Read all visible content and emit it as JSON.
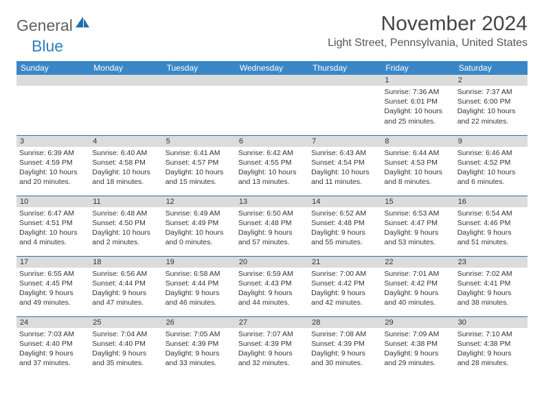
{
  "logo": {
    "text1": "General",
    "text2": "Blue",
    "icon_color": "#1f6fb0"
  },
  "title": "November 2024",
  "location": "Light Street, Pennsylvania, United States",
  "colors": {
    "header_bg": "#3a87c8",
    "header_text": "#ffffff",
    "daynum_bg": "#dcdcdc",
    "border": "#3a6a9a",
    "title_color": "#444444",
    "location_color": "#555555",
    "logo_gray": "#5f5f5f",
    "logo_blue": "#2f7ebf"
  },
  "daysOfWeek": [
    "Sunday",
    "Monday",
    "Tuesday",
    "Wednesday",
    "Thursday",
    "Friday",
    "Saturday"
  ],
  "weeks": [
    [
      {
        "n": "",
        "sr": "",
        "ss": "",
        "dl": ""
      },
      {
        "n": "",
        "sr": "",
        "ss": "",
        "dl": ""
      },
      {
        "n": "",
        "sr": "",
        "ss": "",
        "dl": ""
      },
      {
        "n": "",
        "sr": "",
        "ss": "",
        "dl": ""
      },
      {
        "n": "",
        "sr": "",
        "ss": "",
        "dl": ""
      },
      {
        "n": "1",
        "sr": "Sunrise: 7:36 AM",
        "ss": "Sunset: 6:01 PM",
        "dl": "Daylight: 10 hours and 25 minutes."
      },
      {
        "n": "2",
        "sr": "Sunrise: 7:37 AM",
        "ss": "Sunset: 6:00 PM",
        "dl": "Daylight: 10 hours and 22 minutes."
      }
    ],
    [
      {
        "n": "3",
        "sr": "Sunrise: 6:39 AM",
        "ss": "Sunset: 4:59 PM",
        "dl": "Daylight: 10 hours and 20 minutes."
      },
      {
        "n": "4",
        "sr": "Sunrise: 6:40 AM",
        "ss": "Sunset: 4:58 PM",
        "dl": "Daylight: 10 hours and 18 minutes."
      },
      {
        "n": "5",
        "sr": "Sunrise: 6:41 AM",
        "ss": "Sunset: 4:57 PM",
        "dl": "Daylight: 10 hours and 15 minutes."
      },
      {
        "n": "6",
        "sr": "Sunrise: 6:42 AM",
        "ss": "Sunset: 4:55 PM",
        "dl": "Daylight: 10 hours and 13 minutes."
      },
      {
        "n": "7",
        "sr": "Sunrise: 6:43 AM",
        "ss": "Sunset: 4:54 PM",
        "dl": "Daylight: 10 hours and 11 minutes."
      },
      {
        "n": "8",
        "sr": "Sunrise: 6:44 AM",
        "ss": "Sunset: 4:53 PM",
        "dl": "Daylight: 10 hours and 8 minutes."
      },
      {
        "n": "9",
        "sr": "Sunrise: 6:46 AM",
        "ss": "Sunset: 4:52 PM",
        "dl": "Daylight: 10 hours and 6 minutes."
      }
    ],
    [
      {
        "n": "10",
        "sr": "Sunrise: 6:47 AM",
        "ss": "Sunset: 4:51 PM",
        "dl": "Daylight: 10 hours and 4 minutes."
      },
      {
        "n": "11",
        "sr": "Sunrise: 6:48 AM",
        "ss": "Sunset: 4:50 PM",
        "dl": "Daylight: 10 hours and 2 minutes."
      },
      {
        "n": "12",
        "sr": "Sunrise: 6:49 AM",
        "ss": "Sunset: 4:49 PM",
        "dl": "Daylight: 10 hours and 0 minutes."
      },
      {
        "n": "13",
        "sr": "Sunrise: 6:50 AM",
        "ss": "Sunset: 4:48 PM",
        "dl": "Daylight: 9 hours and 57 minutes."
      },
      {
        "n": "14",
        "sr": "Sunrise: 6:52 AM",
        "ss": "Sunset: 4:48 PM",
        "dl": "Daylight: 9 hours and 55 minutes."
      },
      {
        "n": "15",
        "sr": "Sunrise: 6:53 AM",
        "ss": "Sunset: 4:47 PM",
        "dl": "Daylight: 9 hours and 53 minutes."
      },
      {
        "n": "16",
        "sr": "Sunrise: 6:54 AM",
        "ss": "Sunset: 4:46 PM",
        "dl": "Daylight: 9 hours and 51 minutes."
      }
    ],
    [
      {
        "n": "17",
        "sr": "Sunrise: 6:55 AM",
        "ss": "Sunset: 4:45 PM",
        "dl": "Daylight: 9 hours and 49 minutes."
      },
      {
        "n": "18",
        "sr": "Sunrise: 6:56 AM",
        "ss": "Sunset: 4:44 PM",
        "dl": "Daylight: 9 hours and 47 minutes."
      },
      {
        "n": "19",
        "sr": "Sunrise: 6:58 AM",
        "ss": "Sunset: 4:44 PM",
        "dl": "Daylight: 9 hours and 46 minutes."
      },
      {
        "n": "20",
        "sr": "Sunrise: 6:59 AM",
        "ss": "Sunset: 4:43 PM",
        "dl": "Daylight: 9 hours and 44 minutes."
      },
      {
        "n": "21",
        "sr": "Sunrise: 7:00 AM",
        "ss": "Sunset: 4:42 PM",
        "dl": "Daylight: 9 hours and 42 minutes."
      },
      {
        "n": "22",
        "sr": "Sunrise: 7:01 AM",
        "ss": "Sunset: 4:42 PM",
        "dl": "Daylight: 9 hours and 40 minutes."
      },
      {
        "n": "23",
        "sr": "Sunrise: 7:02 AM",
        "ss": "Sunset: 4:41 PM",
        "dl": "Daylight: 9 hours and 38 minutes."
      }
    ],
    [
      {
        "n": "24",
        "sr": "Sunrise: 7:03 AM",
        "ss": "Sunset: 4:40 PM",
        "dl": "Daylight: 9 hours and 37 minutes."
      },
      {
        "n": "25",
        "sr": "Sunrise: 7:04 AM",
        "ss": "Sunset: 4:40 PM",
        "dl": "Daylight: 9 hours and 35 minutes."
      },
      {
        "n": "26",
        "sr": "Sunrise: 7:05 AM",
        "ss": "Sunset: 4:39 PM",
        "dl": "Daylight: 9 hours and 33 minutes."
      },
      {
        "n": "27",
        "sr": "Sunrise: 7:07 AM",
        "ss": "Sunset: 4:39 PM",
        "dl": "Daylight: 9 hours and 32 minutes."
      },
      {
        "n": "28",
        "sr": "Sunrise: 7:08 AM",
        "ss": "Sunset: 4:39 PM",
        "dl": "Daylight: 9 hours and 30 minutes."
      },
      {
        "n": "29",
        "sr": "Sunrise: 7:09 AM",
        "ss": "Sunset: 4:38 PM",
        "dl": "Daylight: 9 hours and 29 minutes."
      },
      {
        "n": "30",
        "sr": "Sunrise: 7:10 AM",
        "ss": "Sunset: 4:38 PM",
        "dl": "Daylight: 9 hours and 28 minutes."
      }
    ]
  ]
}
